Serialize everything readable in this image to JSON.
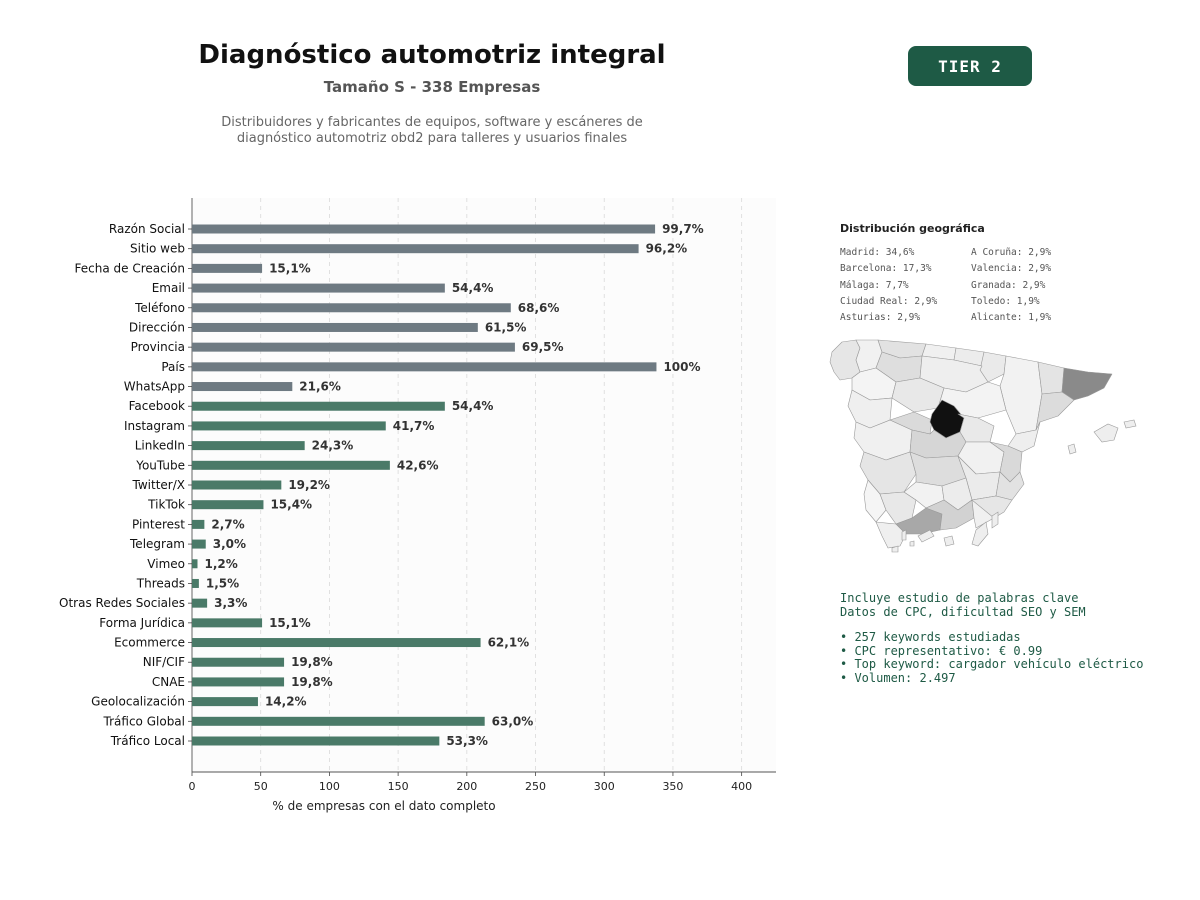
{
  "header": {
    "title": "Diagnóstico automotriz integral",
    "subtitle": "Tamaño S - 338 Empresas",
    "description_line1": "Distribuidores y fabricantes de equipos, software y escáneres de",
    "description_line2": "diagnóstico automotriz obd2 para talleres y usuarios finales",
    "tier_label": "TIER 2"
  },
  "colors": {
    "bar_gray": "#6e7a82",
    "bar_green": "#4a7a68",
    "badge": "#1e5a45",
    "text_green": "#1e5a45"
  },
  "chart_data": {
    "type": "bar",
    "orientation": "horizontal",
    "xlabel": "% de empresas con el dato completo",
    "xlim": [
      0,
      425
    ],
    "xticks": [
      0,
      50,
      100,
      150,
      200,
      250,
      300,
      350,
      400
    ],
    "grid": "vertical dashed",
    "categories": [
      "Razón Social",
      "Sitio web",
      "Fecha de Creación",
      "Email",
      "Teléfono",
      "Dirección",
      "Provincia",
      "País",
      "WhatsApp",
      "Facebook",
      "Instagram",
      "LinkedIn",
      "YouTube",
      "Twitter/X",
      "TikTok",
      "Pinterest",
      "Telegram",
      "Vimeo",
      "Threads",
      "Otras Redes Sociales",
      "Forma Jurídica",
      "Ecommerce",
      "NIF/CIF",
      "CNAE",
      "Geolocalización",
      "Tráfico Global",
      "Tráfico Local"
    ],
    "values": [
      337,
      325,
      51,
      184,
      232,
      208,
      235,
      338,
      73,
      184,
      141,
      82,
      144,
      65,
      52,
      9,
      10,
      4,
      5,
      11,
      51,
      210,
      67,
      67,
      48,
      213,
      180
    ],
    "labels": [
      "99,7%",
      "96,2%",
      "15,1%",
      "54,4%",
      "68,6%",
      "61,5%",
      "69,5%",
      "100%",
      "21,6%",
      "54,4%",
      "41,7%",
      "24,3%",
      "42,6%",
      "19,2%",
      "15,4%",
      "2,7%",
      "3,0%",
      "1,2%",
      "1,5%",
      "3,3%",
      "15,1%",
      "62,1%",
      "19,8%",
      "19,8%",
      "14,2%",
      "63,0%",
      "53,3%"
    ],
    "bar_groups": [
      "gray",
      "gray",
      "gray",
      "gray",
      "gray",
      "gray",
      "gray",
      "gray",
      "gray",
      "green",
      "green",
      "green",
      "green",
      "green",
      "green",
      "green",
      "green",
      "green",
      "green",
      "green",
      "green",
      "green",
      "green",
      "green",
      "green",
      "green",
      "green"
    ]
  },
  "geo": {
    "title": "Distribución geográfica",
    "items": [
      "Madrid: 34,6%",
      "A Coruña: 2,9%",
      "Barcelona: 17,3%",
      "Valencia: 2,9%",
      "Málaga: 7,7%",
      "Granada: 2,9%",
      "Ciudad Real: 2,9%",
      "Toledo: 1,9%",
      "Asturias: 2,9%",
      "Alicante: 1,9%"
    ]
  },
  "keywords": {
    "line1": "Incluye estudio de palabras clave",
    "line2": "Datos de CPC, dificultad SEO y SEM",
    "bullet1": "• 257 keywords estudiadas",
    "bullet2": "• CPC representativo: € 0.99",
    "bullet3": "• Top keyword: cargador vehículo eléctrico",
    "bullet4": "• Volumen: 2.497"
  }
}
